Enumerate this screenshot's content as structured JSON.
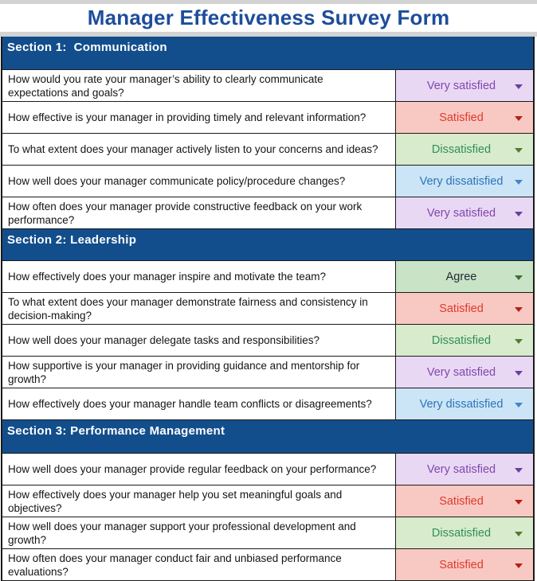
{
  "title": "Manager Effectiveness Survey Form",
  "colors": {
    "title_text": "#1d4d9b",
    "section_bg": "#134e8c",
    "section_text": "#ffffff",
    "purple": {
      "bg": "#e9d8f4",
      "text": "#8147ad",
      "arrow": "#6b3fa0"
    },
    "red": {
      "bg": "#f8c9c2",
      "text": "#e03a2f",
      "arrow": "#b51f12"
    },
    "green": {
      "bg": "#d8ebcd",
      "text": "#2f9152",
      "arrow": "#507d2e"
    },
    "blue": {
      "bg": "#cbe5f6",
      "text": "#2e73b8",
      "arrow": "#3f86c8"
    },
    "agree": {
      "bg": "#c9e3c6",
      "text": "#212b36",
      "arrow": "#3c6e35"
    }
  },
  "sections": [
    {
      "label": "Section 1:  Communication",
      "rows": [
        {
          "question": "How would you rate your manager’s ability to clearly communicate expectations and goals?",
          "answer": "Very satisfied",
          "variant": "purple"
        },
        {
          "question": "How effective is your manager in providing timely and relevant information?",
          "answer": "Satisfied",
          "variant": "red"
        },
        {
          "question": "To what extent does your manager actively listen to your concerns and ideas?",
          "answer": "Dissatisfied",
          "variant": "green"
        },
        {
          "question": "How well does your manager communicate policy/procedure changes?",
          "answer": "Very dissatisfied",
          "variant": "blue"
        },
        {
          "question": "How often does your manager provide constructive feedback on your work performance?",
          "answer": "Very satisfied",
          "variant": "purple"
        }
      ]
    },
    {
      "label": "Section 2: Leadership",
      "rows": [
        {
          "question": "How effectively does your manager inspire and motivate the team?",
          "answer": "Agree",
          "variant": "agree"
        },
        {
          "question": "To what extent does your manager demonstrate fairness and consistency in decision-making?",
          "answer": "Satisfied",
          "variant": "red"
        },
        {
          "question": "How well does your manager delegate tasks and responsibilities?",
          "answer": "Dissatisfied",
          "variant": "green"
        },
        {
          "question": "How supportive is your manager in providing guidance and mentorship for growth?",
          "answer": "Very satisfied",
          "variant": "purple"
        },
        {
          "question": "How effectively does your manager handle team conflicts or disagreements?",
          "answer": "Very dissatisfied",
          "variant": "blue"
        }
      ]
    },
    {
      "label": "Section 3: Performance Management",
      "rows": [
        {
          "question": "How well does your manager provide regular feedback on your performance?",
          "answer": "Very satisfied",
          "variant": "purple"
        },
        {
          "question": "How effectively does your manager help you set meaningful goals and objectives?",
          "answer": "Satisfied",
          "variant": "red"
        },
        {
          "question": "How well does your manager support your professional development and growth?",
          "answer": "Dissatisfied",
          "variant": "green"
        },
        {
          "question": "How often does your manager conduct fair and unbiased performance evaluations?",
          "answer": "Satisfied",
          "variant": "red"
        }
      ]
    }
  ]
}
